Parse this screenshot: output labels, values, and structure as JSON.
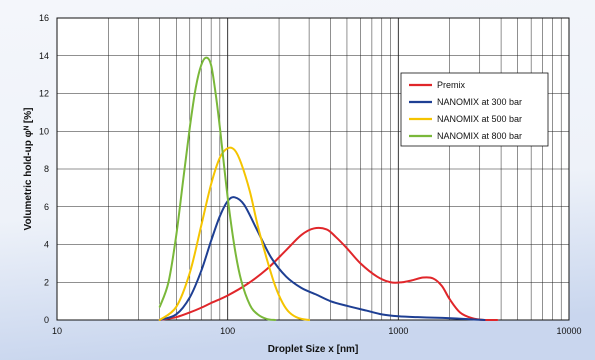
{
  "chart_data": {
    "type": "line",
    "title": "",
    "xlabel": "Droplet Size x [nm]",
    "ylabel": "Volumetric hold-up φᴺ [%]",
    "x_scale": "log",
    "xlim": [
      10,
      10000
    ],
    "ylim": [
      0,
      16
    ],
    "x_ticks": [
      10,
      100,
      1000,
      10000
    ],
    "x_tick_labels": [
      "10",
      "100",
      "1000",
      "10000"
    ],
    "y_ticks": [
      0,
      2,
      4,
      6,
      8,
      10,
      12,
      14,
      16
    ],
    "y_tick_labels": [
      "0",
      "2",
      "4",
      "6",
      "8",
      "10",
      "12",
      "14",
      "16"
    ],
    "grid": true,
    "legend_position": "top-right",
    "series": [
      {
        "name": "Premix",
        "color": "#e0262a",
        "x": [
          40,
          50,
          60,
          70,
          80,
          100,
          130,
          170,
          220,
          270,
          320,
          380,
          430,
          500,
          600,
          750,
          900,
          1050,
          1200,
          1400,
          1600,
          1800,
          2000,
          2300,
          2700,
          3200,
          3800
        ],
        "y": [
          0,
          0.15,
          0.4,
          0.65,
          0.9,
          1.3,
          1.9,
          2.7,
          3.7,
          4.5,
          4.85,
          4.8,
          4.4,
          3.8,
          3.0,
          2.3,
          2.0,
          2.0,
          2.1,
          2.25,
          2.2,
          1.8,
          1.1,
          0.4,
          0.1,
          0,
          0
        ]
      },
      {
        "name": "NANOMIX at 300 bar",
        "color": "#1e3f93",
        "x": [
          40,
          50,
          60,
          70,
          80,
          90,
          100,
          110,
          125,
          150,
          180,
          220,
          270,
          330,
          400,
          500,
          650,
          800,
          1000,
          1300,
          1700,
          2200,
          2700,
          3200
        ],
        "y": [
          0,
          0.3,
          1.2,
          2.6,
          4.2,
          5.5,
          6.3,
          6.5,
          6.1,
          4.7,
          3.3,
          2.3,
          1.7,
          1.35,
          1.0,
          0.75,
          0.5,
          0.3,
          0.2,
          0.15,
          0.12,
          0.08,
          0.03,
          0
        ]
      },
      {
        "name": "NANOMIX at 500 bar",
        "color": "#f5c400",
        "x": [
          40,
          50,
          60,
          70,
          80,
          90,
          100,
          110,
          120,
          135,
          150,
          170,
          190,
          210,
          230,
          260,
          300
        ],
        "y": [
          0,
          0.7,
          2.5,
          5.0,
          7.2,
          8.6,
          9.1,
          9.0,
          8.3,
          6.8,
          5.0,
          3.2,
          1.8,
          0.9,
          0.4,
          0.1,
          0
        ]
      },
      {
        "name": "NANOMIX at 800 bar",
        "color": "#7ab83a",
        "x": [
          40,
          45,
          50,
          55,
          60,
          65,
          70,
          75,
          80,
          85,
          90,
          100,
          110,
          120,
          135,
          150,
          170,
          190
        ],
        "y": [
          0.7,
          2.0,
          4.5,
          7.5,
          10.2,
          12.3,
          13.5,
          13.9,
          13.5,
          12.0,
          10.2,
          6.5,
          3.8,
          2.1,
          0.8,
          0.3,
          0.05,
          0
        ]
      }
    ]
  }
}
